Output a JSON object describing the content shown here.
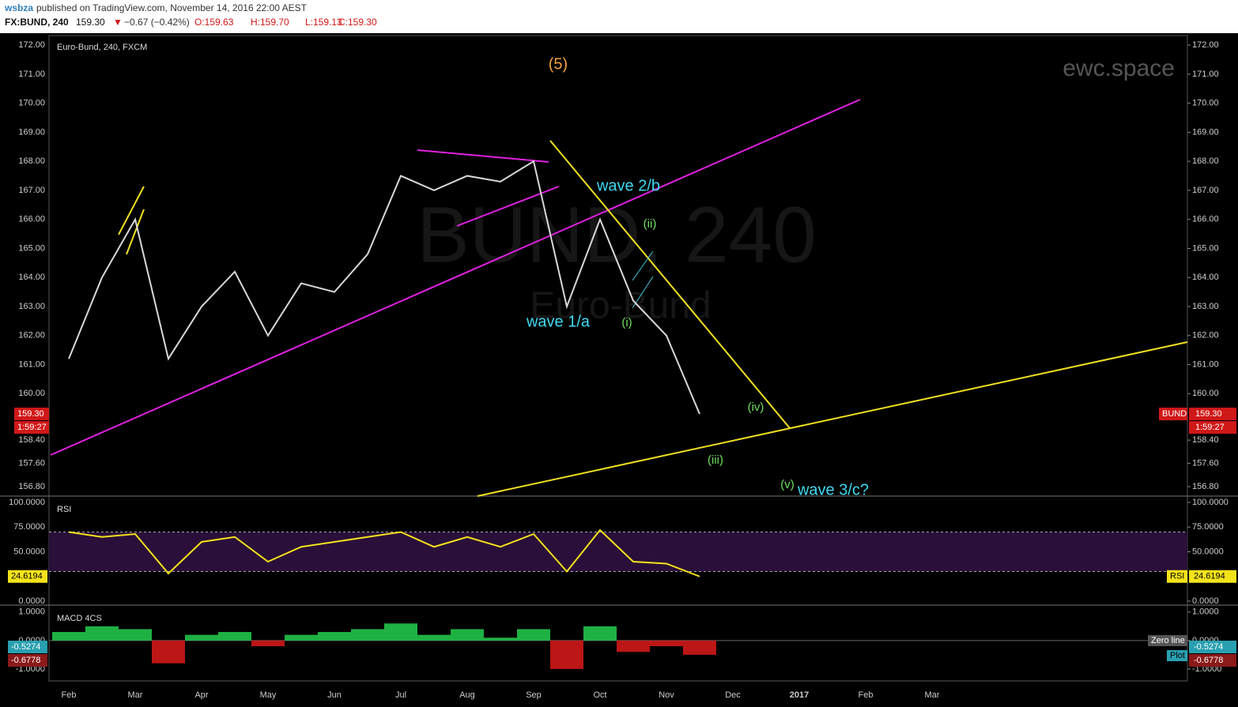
{
  "header": {
    "author": "wsbza",
    "published": "published on TradingView.com, November 14, 2016 22:00 AEST",
    "symbol": "FX:BUND, 240",
    "price": "159.30",
    "change": "−0.67 (−0.42%)",
    "open": "O:159.63",
    "high": "H:159.70",
    "low": "L:159.13",
    "close": "C:159.30"
  },
  "watermark": {
    "symbol": "BUND, 240",
    "name": "Euro-Bund",
    "brand": "ewc.space"
  },
  "annotations": [
    "(5)",
    "wave 2/b",
    "(ii)",
    "wave 1/a",
    "(i)",
    "(iv)",
    "(iii)",
    "(v)",
    "wave 3/c?"
  ],
  "chart_data": [
    {
      "type": "line",
      "title": "Euro-Bund, 240, FXCM",
      "categories": [
        "Feb",
        null,
        "Mar",
        null,
        "Apr",
        null,
        "May",
        null,
        "Jun",
        null,
        "Jul",
        null,
        "Aug",
        null,
        "Sep",
        null,
        "Oct",
        null,
        "Nov",
        null,
        "Dec",
        null,
        "2017",
        null,
        "Feb",
        null,
        "Mar",
        null
      ],
      "series": [
        {
          "name": "BUND",
          "color": "#d8d8d8",
          "values": [
            161.2,
            164.0,
            166.0,
            161.2,
            163.0,
            164.2,
            162.0,
            163.8,
            163.5,
            164.8,
            167.5,
            167.0,
            167.5,
            167.3,
            168.0,
            163.0,
            166.0,
            163.2,
            162.0,
            159.3,
            null,
            null,
            null,
            null,
            null,
            null,
            null,
            null
          ]
        }
      ],
      "last_price_label": "159.30",
      "countdown": "1:59:27",
      "ylim": [
        156.5,
        172.33
      ],
      "yticks": [
        {
          "value": 172,
          "label": "172.00"
        },
        {
          "value": 171,
          "label": "171.00"
        },
        {
          "value": 170,
          "label": "170.00"
        },
        {
          "value": 169,
          "label": "169.00"
        },
        {
          "value": 168,
          "label": "168.00"
        },
        {
          "value": 167,
          "label": "167.00"
        },
        {
          "value": 166,
          "label": "166.00"
        },
        {
          "value": 165,
          "label": "165.00"
        },
        {
          "value": 164,
          "label": "164.00"
        },
        {
          "value": 163,
          "label": "163.00"
        },
        {
          "value": 162,
          "label": "162.00"
        },
        {
          "value": 161,
          "label": "161.00"
        },
        {
          "value": 160,
          "label": "160.00"
        },
        {
          "value": 158.4,
          "label": "158.40"
        },
        {
          "value": 157.6,
          "label": "157.60"
        },
        {
          "value": 156.8,
          "label": "156.80"
        }
      ]
    },
    {
      "type": "line",
      "title": "RSI",
      "series": [
        {
          "name": "RSI",
          "color": "#f5e31a",
          "values": [
            70,
            65,
            68,
            28,
            60,
            65,
            40,
            55,
            60,
            65,
            70,
            55,
            65,
            55,
            68,
            30,
            72,
            40,
            38,
            25,
            null,
            null,
            null,
            null,
            null,
            null,
            null,
            null
          ]
        }
      ],
      "band": [
        30,
        70
      ],
      "current_label": "24.6194",
      "ylim": [
        -3.2,
        104.8
      ],
      "yticks": [
        {
          "value": 100,
          "label": "100.0000"
        },
        {
          "value": 75,
          "label": "75.0000"
        },
        {
          "value": 50,
          "label": "50.0000"
        },
        {
          "value": 0,
          "label": "0.0000"
        }
      ]
    },
    {
      "type": "bar",
      "title": "MACD 4CS",
      "series": [
        {
          "name": "Plot",
          "color_up": "#22c44a",
          "color_down": "#d01818",
          "values": [
            0.3,
            0.5,
            0.4,
            -0.8,
            0.2,
            0.3,
            -0.2,
            0.2,
            0.3,
            0.4,
            0.6,
            0.2,
            0.4,
            0.1,
            0.4,
            -1.0,
            0.5,
            -0.4,
            -0.2,
            -0.5,
            null,
            null,
            null,
            null,
            null,
            null,
            null,
            null
          ]
        }
      ],
      "zero_line_name": "Zero line",
      "current_labels": [
        "-0.5274",
        "-0.6778"
      ],
      "ylim": [
        -1.42,
        1.19
      ],
      "yticks": [
        {
          "value": 1,
          "label": "1.0000"
        },
        {
          "value": 0,
          "label": "0.0000"
        },
        {
          "value": -1,
          "label": "-1.0000"
        }
      ]
    }
  ]
}
